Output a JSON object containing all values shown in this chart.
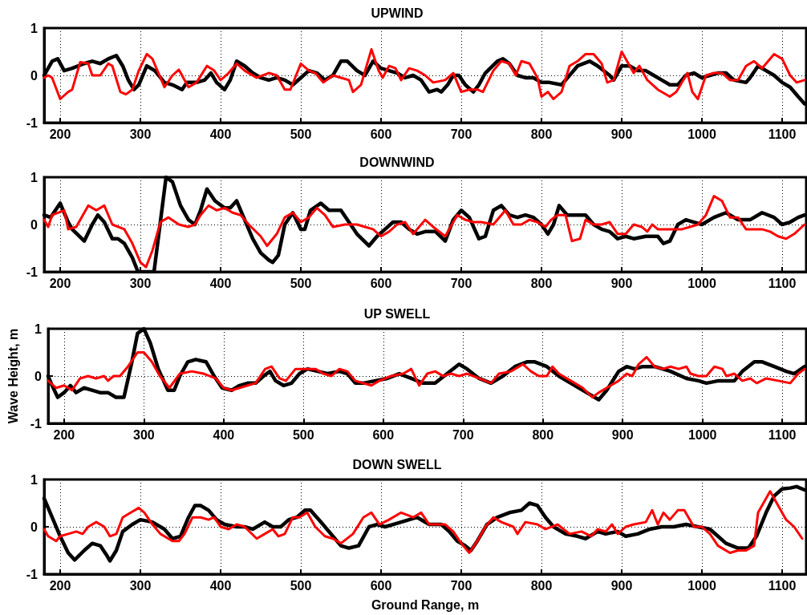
{
  "chart_data": [
    {
      "type": "line",
      "title": "UPWIND",
      "xlim": [
        180,
        1130
      ],
      "xticks": [
        200,
        300,
        400,
        500,
        600,
        700,
        800,
        900,
        1000,
        1100
      ],
      "ylim": [
        -1,
        1
      ],
      "yticks": [
        -1,
        0,
        1
      ],
      "grid": true,
      "series": [
        {
          "color": "#000000",
          "x": [
            180,
            190,
            197,
            205,
            215,
            230,
            240,
            250,
            260,
            270,
            278,
            285,
            292,
            298,
            308,
            318,
            330,
            340,
            352,
            358,
            370,
            380,
            388,
            395,
            405,
            412,
            420,
            430,
            440,
            450,
            460,
            470,
            480,
            490,
            500,
            510,
            520,
            530,
            540,
            550,
            558,
            570,
            580,
            590,
            600,
            610,
            620,
            630,
            640,
            650,
            660,
            670,
            675,
            683,
            690,
            697,
            705,
            715,
            722,
            730,
            745,
            752,
            760,
            770,
            780,
            790,
            800,
            810,
            825,
            835,
            845,
            860,
            870,
            885,
            890,
            900,
            910,
            920,
            930,
            940,
            950,
            960,
            970,
            980,
            990,
            1000,
            1010,
            1020,
            1030,
            1040,
            1055,
            1060,
            1070,
            1080,
            1090,
            1100,
            1110,
            1120,
            1128
          ],
          "values": [
            0,
            0.3,
            0.35,
            0.1,
            0.15,
            0.25,
            0.3,
            0.25,
            0.35,
            0.42,
            0.2,
            -0.1,
            -0.3,
            -0.2,
            0.2,
            0.1,
            -0.15,
            -0.2,
            -0.3,
            -0.15,
            -0.15,
            -0.1,
            0.05,
            -0.15,
            -0.3,
            -0.1,
            0.3,
            0.2,
            0.05,
            -0.05,
            -0.1,
            -0.05,
            -0.1,
            -0.2,
            -0.05,
            0.1,
            0.05,
            -0.1,
            0,
            0.3,
            0.3,
            0.1,
            0,
            0.3,
            0.15,
            0.1,
            0.05,
            -0.05,
            0,
            -0.1,
            -0.35,
            -0.3,
            -0.35,
            -0.2,
            0,
            0,
            -0.2,
            -0.35,
            -0.2,
            0.05,
            0.3,
            0.35,
            0.25,
            0,
            -0.05,
            -0.05,
            -0.15,
            -0.15,
            -0.2,
            0,
            0.2,
            0.3,
            0.2,
            0,
            -0.1,
            0.2,
            0.2,
            0.1,
            0.1,
            0,
            -0.1,
            -0.2,
            -0.2,
            0,
            0.05,
            -0.05,
            0,
            0.05,
            0.05,
            -0.1,
            -0.15,
            -0.05,
            0.2,
            0.1,
            0,
            -0.15,
            -0.25,
            -0.45,
            -0.6
          ]
        },
        {
          "color": "#ff0000",
          "x": [
            180,
            185,
            190,
            200,
            210,
            215,
            225,
            235,
            240,
            250,
            260,
            265,
            275,
            282,
            290,
            298,
            308,
            315,
            330,
            340,
            348,
            360,
            370,
            383,
            392,
            400,
            410,
            420,
            430,
            445,
            460,
            470,
            480,
            487,
            500,
            510,
            518,
            528,
            540,
            550,
            560,
            565,
            575,
            588,
            597,
            602,
            610,
            618,
            625,
            635,
            645,
            655,
            665,
            680,
            690,
            700,
            710,
            720,
            727,
            740,
            750,
            760,
            768,
            775,
            785,
            795,
            800,
            808,
            815,
            825,
            835,
            845,
            855,
            865,
            875,
            882,
            890,
            900,
            910,
            915,
            922,
            932,
            945,
            960,
            968,
            982,
            988,
            995,
            1005,
            1015,
            1025,
            1035,
            1045,
            1055,
            1065,
            1075,
            1080,
            1090,
            1100,
            1110,
            1118,
            1128
          ],
          "values": [
            -0.05,
            0,
            -0.05,
            -0.5,
            -0.35,
            -0.3,
            0.28,
            0.25,
            0,
            0,
            0.25,
            0.2,
            -0.35,
            -0.4,
            -0.3,
            0.1,
            0.45,
            0.35,
            -0.25,
            0,
            0.12,
            -0.25,
            -0.15,
            0.2,
            0.1,
            -0.1,
            0.05,
            0.25,
            0.1,
            -0.05,
            0.05,
            0,
            -0.3,
            -0.3,
            0.25,
            0.1,
            0.05,
            -0.15,
            0,
            -0.05,
            -0.1,
            -0.35,
            -0.2,
            0.55,
            0.1,
            -0.05,
            0.2,
            0.15,
            -0.1,
            0.15,
            0.1,
            0,
            -0.15,
            -0.1,
            0.05,
            -0.35,
            -0.3,
            -0.3,
            -0.35,
            0.1,
            0.3,
            0.25,
            0,
            0.3,
            0.25,
            -0.05,
            -0.45,
            -0.35,
            -0.5,
            -0.35,
            0.2,
            0.3,
            0.45,
            0.45,
            0.25,
            -0.15,
            -0.1,
            0.5,
            0.2,
            0.05,
            0.2,
            -0.1,
            -0.3,
            -0.45,
            -0.35,
            0.05,
            -0.35,
            -0.5,
            0,
            0.05,
            0.05,
            -0.1,
            -0.1,
            0.2,
            0.3,
            0.15,
            0.25,
            0.45,
            0.35,
            0,
            -0.15,
            -0.1
          ]
        }
      ]
    },
    {
      "type": "line",
      "title": "DOWNWIND",
      "xlim": [
        180,
        1130
      ],
      "xticks": [
        200,
        300,
        400,
        500,
        600,
        700,
        800,
        900,
        1000,
        1100
      ],
      "ylim": [
        -1,
        1
      ],
      "yticks": [
        -1,
        0,
        1
      ],
      "grid": true,
      "series": [
        {
          "color": "#000000",
          "x": [
            180,
            188,
            200,
            210,
            215,
            230,
            240,
            247,
            255,
            265,
            272,
            280,
            290,
            297,
            317,
            332,
            340,
            350,
            360,
            368,
            375,
            383,
            393,
            405,
            412,
            420,
            430,
            440,
            450,
            460,
            465,
            472,
            480,
            490,
            500,
            505,
            512,
            525,
            535,
            550,
            560,
            570,
            585,
            595,
            605,
            615,
            625,
            635,
            645,
            655,
            668,
            680,
            690,
            700,
            710,
            722,
            730,
            740,
            750,
            760,
            770,
            780,
            790,
            800,
            808,
            815,
            822,
            832,
            840,
            855,
            865,
            875,
            885,
            895,
            905,
            915,
            930,
            945,
            952,
            960,
            970,
            980,
            990,
            1000,
            1015,
            1030,
            1045,
            1060,
            1075,
            1090,
            1100,
            1110,
            1120,
            1128
          ],
          "values": [
            0.2,
            0.15,
            0.45,
            0.05,
            -0.1,
            -0.35,
            0,
            0.2,
            0.05,
            -0.3,
            -0.3,
            -0.4,
            -0.7,
            -1,
            -1,
            1,
            0.9,
            0.4,
            0.1,
            0,
            0.3,
            0.75,
            0.5,
            0.35,
            0.35,
            0.5,
            0.1,
            -0.3,
            -0.6,
            -0.75,
            -0.8,
            -0.65,
            0,
            0.25,
            -0.1,
            -0.1,
            0.3,
            0.45,
            0.3,
            0.3,
            0.05,
            -0.2,
            -0.45,
            -0.25,
            -0.1,
            0.05,
            0.05,
            -0.1,
            -0.2,
            -0.15,
            -0.15,
            -0.35,
            0.1,
            0.3,
            0.15,
            -0.3,
            -0.25,
            0.3,
            0.4,
            0.2,
            0.15,
            0.2,
            0.15,
            0,
            -0.2,
            0,
            0.4,
            0.2,
            0.2,
            0.2,
            0,
            -0.1,
            -0.15,
            -0.3,
            -0.25,
            -0.3,
            -0.25,
            -0.25,
            -0.4,
            -0.35,
            0,
            0.1,
            0.05,
            0,
            0.15,
            0.25,
            0.1,
            0.1,
            0.25,
            0.15,
            0,
            0.05,
            0.15,
            0.2
          ]
        },
        {
          "color": "#ff0000",
          "x": [
            180,
            185,
            190,
            205,
            210,
            220,
            235,
            245,
            255,
            265,
            280,
            290,
            300,
            307,
            315,
            325,
            335,
            348,
            360,
            368,
            375,
            385,
            395,
            405,
            415,
            425,
            435,
            450,
            458,
            470,
            480,
            490,
            500,
            510,
            520,
            530,
            540,
            555,
            570,
            580,
            590,
            600,
            610,
            620,
            630,
            640,
            655,
            665,
            680,
            695,
            705,
            715,
            725,
            740,
            755,
            765,
            775,
            785,
            795,
            805,
            812,
            820,
            830,
            838,
            848,
            855,
            865,
            875,
            885,
            895,
            905,
            915,
            925,
            932,
            938,
            945,
            955,
            965,
            975,
            985,
            995,
            1005,
            1015,
            1025,
            1035,
            1045,
            1055,
            1065,
            1075,
            1085,
            1095,
            1105,
            1115,
            1128
          ],
          "values": [
            0.1,
            -0.05,
            0.2,
            0.3,
            -0.1,
            -0.05,
            0.4,
            0.3,
            0.4,
            0,
            -0.1,
            -0.4,
            -0.8,
            -0.9,
            -0.55,
            0.05,
            0.15,
            0,
            -0.05,
            0,
            0.2,
            0.4,
            0.3,
            0.35,
            0.25,
            0.2,
            0,
            -0.25,
            -0.45,
            -0.2,
            0.15,
            0.25,
            0.05,
            0.15,
            0.35,
            0.2,
            -0.05,
            0,
            0,
            -0.05,
            -0.1,
            -0.25,
            -0.15,
            0,
            0.05,
            -0.2,
            0.1,
            -0.05,
            -0.25,
            0.2,
            0.1,
            0.05,
            0.05,
            0,
            0.3,
            0,
            0,
            0.1,
            0.05,
            -0.05,
            0.1,
            0.2,
            0.2,
            -0.35,
            -0.3,
            0.1,
            0,
            0,
            0.05,
            -0.2,
            -0.2,
            0,
            -0.05,
            -0.15,
            0,
            -0.1,
            -0.1,
            -0.1,
            -0.1,
            -0.05,
            0,
            0.2,
            0.6,
            0.5,
            0.15,
            0.15,
            -0.1,
            -0.1,
            -0.1,
            -0.15,
            -0.25,
            -0.3,
            -0.2,
            0
          ]
        }
      ]
    },
    {
      "type": "line",
      "title": "UP SWELL",
      "ylabel": "Wave Height, m",
      "xlim": [
        180,
        1130
      ],
      "xticks": [
        200,
        300,
        400,
        500,
        600,
        700,
        800,
        900,
        1000,
        1100
      ],
      "ylim": [
        -1,
        1
      ],
      "yticks": [
        -1,
        0,
        1
      ],
      "grid": true,
      "series": [
        {
          "color": "#000000",
          "x": [
            180,
            185,
            192,
            200,
            208,
            215,
            225,
            235,
            245,
            255,
            265,
            275,
            285,
            292,
            300,
            308,
            318,
            330,
            338,
            345,
            355,
            365,
            378,
            388,
            398,
            410,
            420,
            430,
            440,
            450,
            458,
            465,
            475,
            485,
            495,
            505,
            518,
            530,
            545,
            555,
            565,
            575,
            590,
            605,
            620,
            635,
            650,
            665,
            680,
            695,
            705,
            720,
            735,
            750,
            765,
            780,
            790,
            805,
            820,
            840,
            860,
            870,
            880,
            895,
            905,
            915,
            925,
            940,
            960,
            980,
            995,
            1005,
            1020,
            1040,
            1050,
            1065,
            1075,
            1090,
            1105,
            1115,
            1128
          ],
          "values": [
            0,
            -0.2,
            -0.45,
            -0.35,
            -0.2,
            -0.35,
            -0.25,
            -0.3,
            -0.35,
            -0.35,
            -0.45,
            -0.45,
            0.3,
            0.9,
            1,
            0.7,
            0.15,
            -0.3,
            -0.3,
            0,
            0.3,
            0.35,
            0.3,
            0,
            -0.25,
            -0.3,
            -0.2,
            -0.15,
            -0.15,
            0,
            0.1,
            -0.1,
            -0.2,
            -0.15,
            0.05,
            0.15,
            0.1,
            0.05,
            0.1,
            0.05,
            -0.15,
            -0.15,
            -0.1,
            -0.05,
            0.05,
            -0.05,
            -0.15,
            -0.15,
            0.05,
            0.25,
            0.15,
            -0.05,
            -0.15,
            0,
            0.2,
            0.3,
            0.3,
            0.2,
            0,
            -0.2,
            -0.4,
            -0.5,
            -0.3,
            0.1,
            0.2,
            0.15,
            0.2,
            0.2,
            0.1,
            -0.05,
            -0.1,
            -0.15,
            -0.1,
            -0.1,
            0.1,
            0.3,
            0.3,
            0.2,
            0.1,
            0.05,
            0.2
          ]
        },
        {
          "color": "#ff0000",
          "x": [
            180,
            190,
            200,
            210,
            220,
            230,
            240,
            250,
            255,
            262,
            270,
            280,
            292,
            300,
            310,
            320,
            332,
            345,
            360,
            375,
            390,
            400,
            410,
            420,
            430,
            440,
            452,
            460,
            470,
            478,
            490,
            505,
            515,
            525,
            535,
            545,
            555,
            565,
            575,
            585,
            595,
            610,
            625,
            635,
            645,
            655,
            665,
            675,
            685,
            695,
            705,
            720,
            735,
            745,
            760,
            775,
            785,
            795,
            805,
            812,
            820,
            835,
            850,
            862,
            870,
            880,
            895,
            905,
            912,
            920,
            930,
            940,
            950,
            960,
            970,
            980,
            985,
            995,
            1005,
            1015,
            1025,
            1030,
            1040,
            1050,
            1060,
            1068,
            1080,
            1095,
            1110,
            1120,
            1128
          ],
          "values": [
            -0.1,
            -0.25,
            -0.2,
            -0.3,
            -0.05,
            0,
            -0.05,
            0,
            -0.1,
            0,
            0,
            0.2,
            0.5,
            0.5,
            0.3,
            0,
            -0.25,
            0.05,
            0.1,
            0.05,
            -0.05,
            -0.25,
            -0.3,
            -0.25,
            -0.2,
            -0.15,
            0.15,
            0.2,
            -0.05,
            -0.1,
            0.15,
            0.15,
            0.15,
            0.05,
            0,
            0.15,
            0.1,
            -0.1,
            -0.15,
            -0.2,
            -0.1,
            0,
            0.05,
            0.15,
            -0.2,
            0.05,
            0.1,
            0,
            0.05,
            0,
            0.05,
            -0.05,
            -0.15,
            0.05,
            0.1,
            0.25,
            0.1,
            0,
            0,
            0.2,
            0.05,
            -0.1,
            -0.25,
            -0.45,
            -0.35,
            -0.25,
            -0.1,
            0.05,
            0,
            0.25,
            0.4,
            0.2,
            0.15,
            0.2,
            0.15,
            0.2,
            0.05,
            0,
            0,
            0.2,
            0.15,
            0,
            0.05,
            -0.1,
            -0.05,
            -0.15,
            -0.05,
            -0.1,
            -0.15,
            0.05,
            0.15
          ]
        }
      ]
    },
    {
      "type": "line",
      "title": "DOWN SWELL",
      "xlabel": "Ground Range, m",
      "xlim": [
        180,
        1130
      ],
      "xticks": [
        200,
        300,
        400,
        500,
        600,
        700,
        800,
        900,
        1000,
        1100
      ],
      "ylim": [
        -1,
        1
      ],
      "yticks": [
        -1,
        0,
        1
      ],
      "grid": true,
      "series": [
        {
          "color": "#000000",
          "x": [
            180,
            190,
            200,
            210,
            218,
            230,
            240,
            250,
            258,
            262,
            270,
            278,
            290,
            300,
            315,
            330,
            340,
            350,
            360,
            368,
            375,
            385,
            395,
            405,
            420,
            430,
            440,
            455,
            465,
            475,
            485,
            495,
            505,
            512,
            525,
            540,
            550,
            560,
            572,
            585,
            595,
            605,
            615,
            625,
            635,
            645,
            660,
            675,
            685,
            695,
            705,
            712,
            720,
            732,
            745,
            760,
            775,
            785,
            795,
            805,
            815,
            830,
            845,
            855,
            870,
            880,
            895,
            905,
            920,
            935,
            950,
            965,
            980,
            995,
            1010,
            1020,
            1030,
            1045,
            1058,
            1068,
            1080,
            1090,
            1100,
            1110,
            1118,
            1128
          ],
          "values": [
            0.6,
            0.2,
            -0.2,
            -0.55,
            -0.7,
            -0.5,
            -0.35,
            -0.4,
            -0.6,
            -0.72,
            -0.5,
            -0.1,
            0.05,
            0.15,
            0.1,
            -0.05,
            -0.25,
            -0.2,
            0.2,
            0.45,
            0.45,
            0.35,
            0.15,
            0.05,
            0,
            0,
            -0.05,
            0.1,
            0,
            0,
            0.15,
            0.2,
            0.35,
            0.35,
            0.1,
            -0.2,
            -0.4,
            -0.45,
            -0.4,
            0,
            0.05,
            0,
            0.05,
            0.1,
            0.15,
            0.2,
            0.05,
            0.05,
            -0.1,
            -0.3,
            -0.4,
            -0.5,
            -0.3,
            0.05,
            0.2,
            0.3,
            0.35,
            0.5,
            0.45,
            0.2,
            0,
            -0.15,
            -0.2,
            -0.25,
            -0.1,
            -0.15,
            -0.1,
            -0.2,
            -0.15,
            -0.05,
            0,
            0,
            0.05,
            0,
            -0.05,
            -0.2,
            -0.35,
            -0.45,
            -0.45,
            -0.2,
            0.3,
            0.65,
            0.8,
            0.82,
            0.85,
            0.78
          ]
        },
        {
          "color": "#ff0000",
          "x": [
            180,
            185,
            195,
            200,
            210,
            220,
            228,
            235,
            245,
            255,
            262,
            270,
            278,
            288,
            298,
            305,
            315,
            325,
            340,
            348,
            355,
            365,
            375,
            385,
            392,
            400,
            410,
            420,
            430,
            445,
            455,
            465,
            472,
            480,
            490,
            498,
            508,
            518,
            530,
            540,
            550,
            565,
            578,
            588,
            598,
            610,
            625,
            640,
            650,
            660,
            680,
            690,
            700,
            710,
            720,
            730,
            740,
            750,
            765,
            770,
            780,
            795,
            805,
            820,
            835,
            850,
            862,
            870,
            880,
            888,
            895,
            905,
            915,
            930,
            938,
            945,
            952,
            960,
            970,
            978,
            990,
            1000,
            1010,
            1020,
            1035,
            1045,
            1055,
            1065,
            1070,
            1085,
            1095,
            1105,
            1115,
            1125
          ],
          "values": [
            -0.05,
            -0.2,
            -0.3,
            -0.2,
            -0.15,
            -0.1,
            -0.15,
            0,
            0.1,
            0,
            -0.2,
            -0.15,
            0.2,
            0.3,
            0.4,
            0.3,
            0.05,
            -0.15,
            -0.3,
            -0.3,
            -0.15,
            0.2,
            0.2,
            0.15,
            0.2,
            0,
            -0.05,
            0.05,
            0,
            -0.25,
            -0.15,
            -0.05,
            -0.2,
            -0.15,
            0.2,
            0.2,
            0.3,
            0,
            -0.2,
            -0.25,
            -0.35,
            -0.15,
            0.2,
            0.3,
            0.05,
            0.15,
            0.3,
            0.2,
            0.3,
            0.05,
            0.05,
            -0.1,
            -0.35,
            -0.55,
            -0.3,
            0,
            0.2,
            0.1,
            0,
            -0.15,
            0.1,
            0.05,
            -0.05,
            0.05,
            -0.15,
            -0.1,
            -0.2,
            -0.05,
            -0.1,
            0.05,
            -0.15,
            0,
            0.05,
            0.1,
            0.35,
            0.05,
            0.3,
            0.15,
            0.35,
            0.35,
            0,
            0,
            -0.15,
            -0.4,
            -0.55,
            -0.5,
            -0.5,
            -0.4,
            0.3,
            0.75,
            0.45,
            0.15,
            0,
            -0.25
          ]
        }
      ]
    }
  ]
}
